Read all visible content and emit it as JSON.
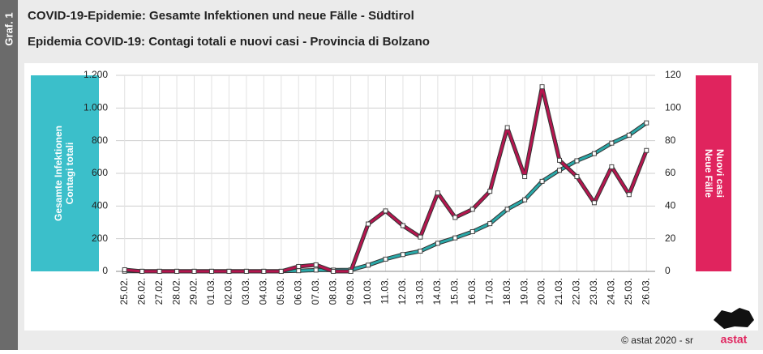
{
  "chart_data": {
    "type": "line",
    "tag": "Graf. 1",
    "title": "COVID-19-Epidemie: Gesamte Infektionen und neue Fälle - Südtirol",
    "subtitle": "Epidemia COVID-19: Contagi totali e nuovi casi - Provincia di Bolzano",
    "y_label": [
      "Gesamte Infektionen",
      "Contagi totali"
    ],
    "y2_label": [
      "Neue Fälle",
      "Nuovi casi"
    ],
    "source": "© astat 2020 - sr",
    "logo": "astat",
    "categories": [
      "25.02.",
      "26.02.",
      "27.02.",
      "28.02.",
      "29.02.",
      "01.03.",
      "02.03.",
      "03.03.",
      "04.03.",
      "05.03.",
      "06.03.",
      "07.03.",
      "08.03.",
      "09.03.",
      "10.03.",
      "11.03.",
      "12.03.",
      "13.03.",
      "14.03.",
      "15.03.",
      "16.03.",
      "17.03.",
      "18.03.",
      "19.03.",
      "20.03.",
      "21.03.",
      "22.03.",
      "23.03.",
      "24.03.",
      "25.03.",
      "26.03."
    ],
    "series": [
      {
        "color": "#2aa9a9",
        "axis": "y",
        "values": [
          1,
          1,
          1,
          1,
          1,
          1,
          1,
          1,
          1,
          1,
          4,
          8,
          8,
          9,
          38,
          75,
          103,
          124,
          172,
          205,
          243,
          292,
          380,
          438,
          551,
          619,
          677,
          721,
          785,
          834,
          909
        ]
      },
      {
        "color": "#b5164f",
        "axis": "y2",
        "values": [
          1,
          0,
          0,
          0,
          0,
          0,
          0,
          0,
          0,
          0,
          3,
          4,
          0,
          0,
          29,
          37,
          28,
          21,
          48,
          33,
          38,
          49,
          88,
          58,
          113,
          68,
          58,
          42,
          64,
          47,
          74
        ]
      }
    ],
    "ylim": [
      0,
      1200
    ],
    "yticks": [
      0,
      200,
      400,
      600,
      800,
      {
        "value": 1000,
        "label": "1.000"
      },
      {
        "value": 1200,
        "label": "1.200"
      }
    ],
    "y2lim": [
      0,
      120
    ],
    "y2ticks": [
      0,
      20,
      40,
      60,
      80,
      100,
      120
    ],
    "grid": true
  }
}
